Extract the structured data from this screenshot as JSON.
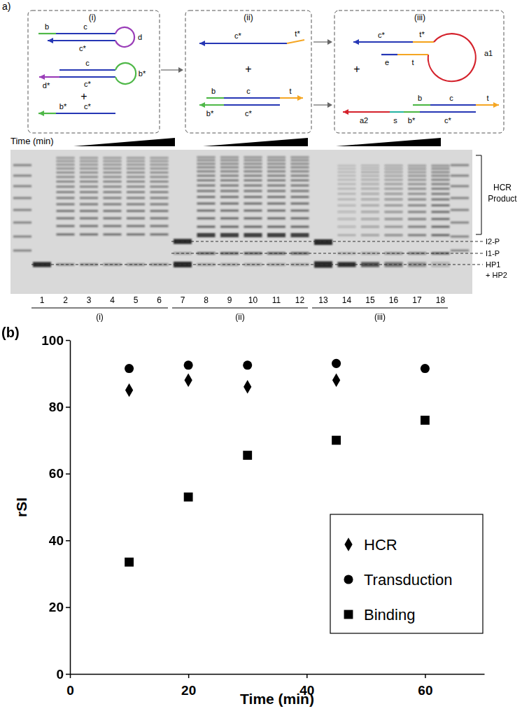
{
  "chart_data": {
    "type": "scatter",
    "x_label": "Time (min)",
    "y_label": "rSI",
    "xlim": [
      0,
      70
    ],
    "xticks": [
      0,
      20,
      40,
      60
    ],
    "ylim": [
      0,
      100
    ],
    "yticks": [
      0,
      20,
      40,
      60,
      80,
      100
    ],
    "grid": false,
    "legend": "lower right",
    "series": [
      {
        "name": "HCR",
        "color": "#000000",
        "marker": "diamond",
        "x": [
          10,
          20,
          30,
          45
        ],
        "values": [
          85,
          88,
          86,
          88
        ]
      },
      {
        "name": "Transduction",
        "color": "#000000",
        "marker": "circle",
        "x": [
          10,
          20,
          30,
          45,
          60
        ],
        "values": [
          91.5,
          92.5,
          92.5,
          93,
          91.5
        ]
      },
      {
        "name": "Binding",
        "color": "#000000",
        "marker": "square",
        "x": [
          10,
          20,
          30,
          45,
          60
        ],
        "values": [
          33.5,
          53,
          65.5,
          70,
          76
        ]
      }
    ]
  },
  "panel_b_label": "(b)",
  "panel_a": {
    "label": "a)",
    "diagram": {
      "boxes": [
        {
          "label": "(i)",
          "texts": [
            "b",
            "c",
            "c*",
            "d",
            "d*",
            "c",
            "c*",
            "b*",
            "+",
            "b*",
            "c*"
          ]
        },
        {
          "label": "(ii)",
          "texts": [
            "c*",
            "t*",
            "+",
            "b",
            "c",
            "t",
            "b*",
            "c*"
          ]
        },
        {
          "label": "(iii)",
          "texts": [
            "c*",
            "t*",
            "a1",
            "e",
            "t",
            "+",
            "a2",
            "s",
            "b*",
            "c*",
            "b",
            "c",
            "t"
          ]
        }
      ]
    },
    "gel": {
      "time_label": "Time (min)",
      "lanes": [
        1,
        2,
        3,
        4,
        5,
        6,
        7,
        8,
        9,
        10,
        11,
        12,
        13,
        14,
        15,
        16,
        17,
        18
      ],
      "groups": [
        "(i)",
        "(ii)",
        "(iii)"
      ],
      "product_label": [
        "HCR",
        "Product"
      ],
      "band_labels": [
        "I2-P",
        "I1-P",
        "HP1",
        "+ HP2"
      ]
    }
  }
}
